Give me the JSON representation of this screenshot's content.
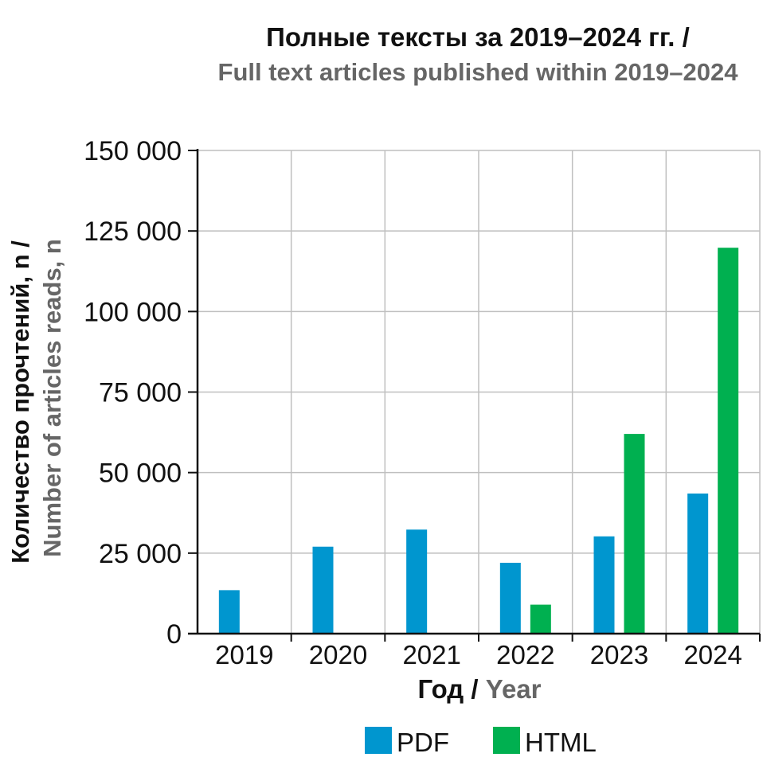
{
  "chart_data": {
    "type": "bar",
    "title": "Полные тексты за 2019–2024 гг. /",
    "subtitle": "Full text articles published within 2019–2024",
    "xlabel": {
      "ru": "Год",
      "sep": " / ",
      "en": "Year"
    },
    "ylabel": {
      "ru": "Количество прочтений, n /",
      "en": "Number of articles reads, n"
    },
    "categories": [
      "2019",
      "2020",
      "2021",
      "2022",
      "2023",
      "2024"
    ],
    "series": [
      {
        "name": "PDF",
        "color": "#0096cf",
        "values": [
          13500,
          27000,
          32300,
          22000,
          30200,
          43500
        ]
      },
      {
        "name": "HTML",
        "color": "#00b050",
        "values": [
          0,
          0,
          0,
          9000,
          62000,
          119800
        ]
      }
    ],
    "ylim": [
      0,
      150000
    ],
    "yticks": [
      0,
      25000,
      50000,
      75000,
      100000,
      125000,
      150000
    ],
    "ytick_labels": [
      "0",
      "25 000",
      "50 000",
      "75 000",
      "100 000",
      "125 000",
      "150 000"
    ],
    "grid": true,
    "legend_position": "bottom"
  }
}
